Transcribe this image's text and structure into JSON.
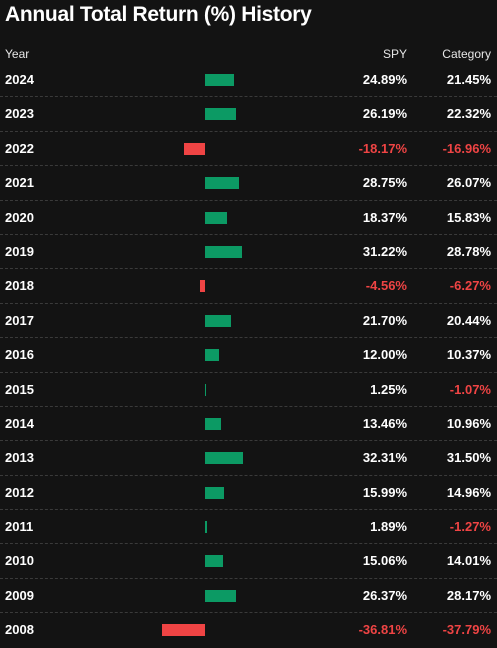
{
  "title": "Annual Total Return (%) History",
  "columns": {
    "year": "Year",
    "spy": "SPY",
    "category": "Category"
  },
  "colors": {
    "positive_bar": "#0c9a64",
    "negative": "#ef4444",
    "background": "#131313"
  },
  "rows": [
    {
      "year": "2024",
      "spy": "24.89%",
      "category": "21.45%",
      "spy_value": 24.89,
      "category_value": 21.45
    },
    {
      "year": "2023",
      "spy": "26.19%",
      "category": "22.32%",
      "spy_value": 26.19,
      "category_value": 22.32
    },
    {
      "year": "2022",
      "spy": "-18.17%",
      "category": "-16.96%",
      "spy_value": -18.17,
      "category_value": -16.96
    },
    {
      "year": "2021",
      "spy": "28.75%",
      "category": "26.07%",
      "spy_value": 28.75,
      "category_value": 26.07
    },
    {
      "year": "2020",
      "spy": "18.37%",
      "category": "15.83%",
      "spy_value": 18.37,
      "category_value": 15.83
    },
    {
      "year": "2019",
      "spy": "31.22%",
      "category": "28.78%",
      "spy_value": 31.22,
      "category_value": 28.78
    },
    {
      "year": "2018",
      "spy": "-4.56%",
      "category": "-6.27%",
      "spy_value": -4.56,
      "category_value": -6.27
    },
    {
      "year": "2017",
      "spy": "21.70%",
      "category": "20.44%",
      "spy_value": 21.7,
      "category_value": 20.44
    },
    {
      "year": "2016",
      "spy": "12.00%",
      "category": "10.37%",
      "spy_value": 12.0,
      "category_value": 10.37
    },
    {
      "year": "2015",
      "spy": "1.25%",
      "category": "-1.07%",
      "spy_value": 1.25,
      "category_value": -1.07
    },
    {
      "year": "2014",
      "spy": "13.46%",
      "category": "10.96%",
      "spy_value": 13.46,
      "category_value": 10.96
    },
    {
      "year": "2013",
      "spy": "32.31%",
      "category": "31.50%",
      "spy_value": 32.31,
      "category_value": 31.5
    },
    {
      "year": "2012",
      "spy": "15.99%",
      "category": "14.96%",
      "spy_value": 15.99,
      "category_value": 14.96
    },
    {
      "year": "2011",
      "spy": "1.89%",
      "category": "-1.27%",
      "spy_value": 1.89,
      "category_value": -1.27
    },
    {
      "year": "2010",
      "spy": "15.06%",
      "category": "14.01%",
      "spy_value": 15.06,
      "category_value": 14.01
    },
    {
      "year": "2009",
      "spy": "26.37%",
      "category": "28.17%",
      "spy_value": 26.37,
      "category_value": 28.17
    },
    {
      "year": "2008",
      "spy": "-36.81%",
      "category": "-37.79%",
      "spy_value": -36.81,
      "category_value": -37.79
    }
  ]
}
